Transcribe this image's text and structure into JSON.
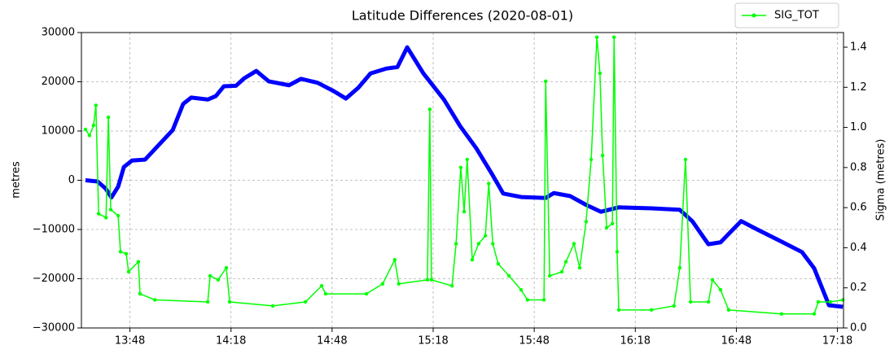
{
  "chart_data": {
    "type": "line",
    "title": "Latitude Differences (2020-08-01)",
    "ylabel": "metres",
    "y2label": "Sigma (metres)",
    "xlim": [
      813.6,
      1039.8
    ],
    "xticks": [
      {
        "value": 828,
        "label": "13:48"
      },
      {
        "value": 858,
        "label": "14:18"
      },
      {
        "value": 888,
        "label": "14:48"
      },
      {
        "value": 918,
        "label": "15:18"
      },
      {
        "value": 948,
        "label": "15:48"
      },
      {
        "value": 978,
        "label": "16:18"
      },
      {
        "value": 1008,
        "label": "16:48"
      },
      {
        "value": 1038,
        "label": "17:18"
      }
    ],
    "ylim": [
      -30000,
      30000
    ],
    "yticks": [
      {
        "value": -30000,
        "label": "−30000"
      },
      {
        "value": -20000,
        "label": "−20000"
      },
      {
        "value": -10000,
        "label": "−10000"
      },
      0,
      10000,
      20000,
      30000
    ],
    "y2lim": [
      0,
      1.473
    ],
    "y2ticks": [
      {
        "value": 0,
        "label": "0.0"
      },
      0.2,
      0.4,
      0.6,
      0.8,
      {
        "value": 1,
        "label": "1.0"
      },
      1.2,
      1.4
    ],
    "grid": true,
    "legend": "upper right",
    "series": [
      {
        "color": "#0000ff",
        "axis": "y",
        "x": [
          814.8,
          818.4,
          820.8,
          822.5,
          824.5,
          826.2,
          828.6,
          832.5,
          836.6,
          840.7,
          843.8,
          846.2,
          851.1,
          853.5,
          855.9,
          859.5,
          861.9,
          865.5,
          869.2,
          875.2,
          878.8,
          883.7,
          888.5,
          892.1,
          895.8,
          899.4,
          904.2,
          907.4,
          910.3,
          915.1,
          921.2,
          926.0,
          930.8,
          935.6,
          938.8,
          944.1,
          951.4,
          953.8,
          958.6,
          963.4,
          967.8,
          973.1,
          982.8,
          991.2,
          994.9,
          999.7,
          1003.3,
          1009.4,
          1014.2,
          1021.5,
          1027.5,
          1031.1,
          1035.5,
          1039.6
        ],
        "values": [
          0,
          -250,
          -1700,
          -3500,
          -1300,
          2700,
          4000,
          4200,
          7200,
          10200,
          15500,
          16800,
          16400,
          17100,
          19100,
          19200,
          20700,
          22200,
          20100,
          19300,
          20600,
          19800,
          18100,
          16600,
          18800,
          21700,
          22700,
          23000,
          27000,
          21700,
          16400,
          11000,
          6500,
          1100,
          -2700,
          -3400,
          -3600,
          -2600,
          -3200,
          -5000,
          -6400,
          -5500,
          -5700,
          -6000,
          -8300,
          -13000,
          -12600,
          -8300,
          -10000,
          -12500,
          -14600,
          -17900,
          -25400,
          -25700
        ]
      },
      {
        "name": "SIG_TOT",
        "color": "#00ff00",
        "axis": "y2",
        "x": [
          814.8,
          816.0,
          817.2,
          817.9,
          818.7,
          820.9,
          821.6,
          822.3,
          824.5,
          825.2,
          826.9,
          827.6,
          830.5,
          831.0,
          835.4,
          851.1,
          851.8,
          854.2,
          856.6,
          857.6,
          870.4,
          880.1,
          884.9,
          886.1,
          898.2,
          903.0,
          906.6,
          907.8,
          916.3,
          917.0,
          917.5,
          923.6,
          924.8,
          926.2,
          927.2,
          928.1,
          929.6,
          931.5,
          933.5,
          934.5,
          935.7,
          937.3,
          940.5,
          944.1,
          946.0,
          950.9,
          951.4,
          952.6,
          956.2,
          957.4,
          959.8,
          961.5,
          963.4,
          964.9,
          966.6,
          967.5,
          968.3,
          969.5,
          971.2,
          971.7,
          972.6,
          973.1,
          982.8,
          989.5,
          991.2,
          992.9,
          994.4,
          999.7,
          1000.9,
          1003.3,
          1005.7,
          1021.4,
          1031.1,
          1032.3,
          1035.9,
          1039.6
        ],
        "values": [
          0.99,
          0.96,
          1.01,
          1.11,
          0.57,
          0.55,
          1.05,
          0.59,
          0.56,
          0.38,
          0.37,
          0.28,
          0.33,
          0.17,
          0.14,
          0.13,
          0.26,
          0.24,
          0.3,
          0.13,
          0.11,
          0.13,
          0.21,
          0.17,
          0.17,
          0.22,
          0.34,
          0.22,
          0.24,
          1.09,
          0.24,
          0.21,
          0.42,
          0.8,
          0.58,
          0.84,
          0.34,
          0.42,
          0.46,
          0.72,
          0.42,
          0.32,
          0.26,
          0.19,
          0.14,
          0.14,
          1.23,
          0.26,
          0.28,
          0.33,
          0.42,
          0.3,
          0.53,
          0.84,
          1.45,
          1.27,
          0.86,
          0.5,
          0.52,
          1.45,
          0.38,
          0.09,
          0.09,
          0.11,
          0.3,
          0.84,
          0.13,
          0.13,
          0.24,
          0.19,
          0.09,
          0.07,
          0.07,
          0.13,
          0.13,
          0.14
        ]
      }
    ]
  }
}
